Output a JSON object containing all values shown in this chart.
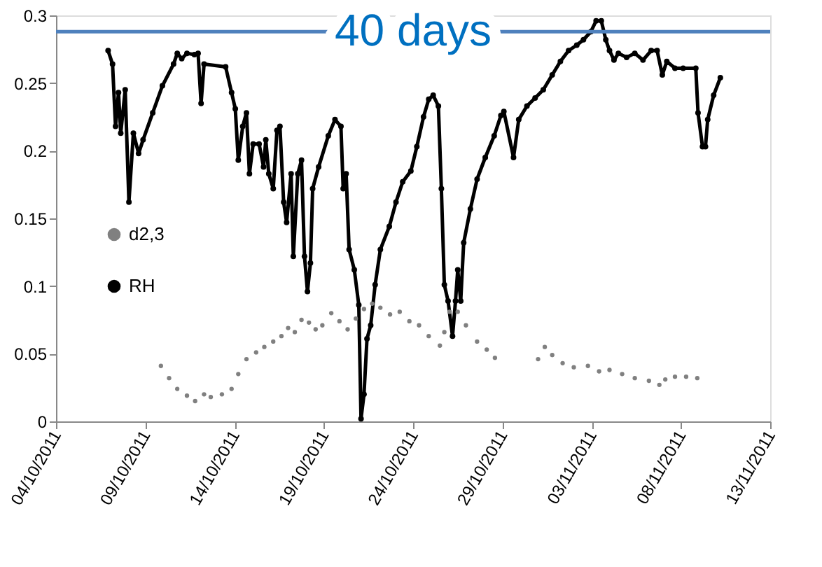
{
  "chart_data": {
    "type": "line",
    "xlim": [
      "2011-10-04",
      "2011-11-13"
    ],
    "xticks": [
      {
        "value": "2011-10-04",
        "label": "04/10/2011"
      },
      {
        "value": "2011-10-09",
        "label": "09/10/2011"
      },
      {
        "value": "2011-10-14",
        "label": "14/10/2011"
      },
      {
        "value": "2011-10-19",
        "label": "19/10/2011"
      },
      {
        "value": "2011-10-24",
        "label": "24/10/2011"
      },
      {
        "value": "2011-10-29",
        "label": "29/10/2011"
      },
      {
        "value": "2011-11-03",
        "label": "03/11/2011"
      },
      {
        "value": "2011-11-08",
        "label": "08/11/2011"
      },
      {
        "value": "2011-11-13",
        "label": "13/11/2011"
      }
    ],
    "ylim": [
      0,
      0.3
    ],
    "yticks": [
      0,
      0.05,
      0.1,
      0.15,
      0.2,
      0.25,
      0.3
    ],
    "grid": false,
    "legend": "left",
    "marker": "circle",
    "line_style": "solid",
    "ref_lines": [
      {
        "axis": "y",
        "value": 0.288,
        "label": "40 days",
        "color": "#4f81bd"
      }
    ],
    "series": [
      {
        "name": "d2,3",
        "type": "scatter",
        "color": "#808080",
        "x": [
          "2011-10-09T21:00",
          "2011-10-10T08:00",
          "2011-10-10T19:00",
          "2011-10-11T08:00",
          "2011-10-11T19:00",
          "2011-10-12T07:00",
          "2011-10-12T16:00",
          "2011-10-13T07:00",
          "2011-10-13T20:00",
          "2011-10-14T05:00",
          "2011-10-14T16:00",
          "2011-10-15T05:00",
          "2011-10-15T16:00",
          "2011-10-16T04:00",
          "2011-10-16T15:00",
          "2011-10-17T00:00",
          "2011-10-17T09:00",
          "2011-10-17T18:00",
          "2011-10-18T04:00",
          "2011-10-18T13:00",
          "2011-10-18T22:00",
          "2011-10-19T10:00",
          "2011-10-19T21:00",
          "2011-10-20T08:00",
          "2011-10-20T19:00",
          "2011-10-21T06:00",
          "2011-10-21T17:00",
          "2011-10-22T04:00",
          "2011-10-22T17:00",
          "2011-10-23T06:00",
          "2011-10-23T19:00",
          "2011-10-24T08:00",
          "2011-10-24T21:00",
          "2011-10-25T12:00",
          "2011-10-25T18:00",
          "2011-10-26T01:00",
          "2011-10-26T12:00",
          "2011-10-26T23:00",
          "2011-10-27T14:00",
          "2011-10-28T03:00",
          "2011-10-28T14:00",
          "2011-10-29T20:00",
          "2011-10-31T00:00",
          "2011-10-31T09:00",
          "2011-10-31T19:00",
          "2011-11-01T09:00",
          "2011-11-02T00:00",
          "2011-11-02T19:00",
          "2011-11-03T10:00",
          "2011-11-04T00:00",
          "2011-11-04T17:00",
          "2011-11-05T10:00",
          "2011-11-06T05:00",
          "2011-11-06T19:00",
          "2011-11-07T03:00",
          "2011-11-07T16:00",
          "2011-11-08T07:00",
          "2011-11-08T22:00"
        ],
        "values": [
          0.041,
          0.032,
          0.024,
          0.019,
          0.015,
          0.02,
          0.018,
          0.02,
          0.024,
          0.035,
          0.046,
          0.051,
          0.055,
          0.059,
          0.063,
          0.069,
          0.066,
          0.075,
          0.073,
          0.068,
          0.071,
          0.08,
          0.074,
          0.068,
          0.076,
          0.083,
          0.087,
          0.084,
          0.079,
          0.081,
          0.074,
          0.071,
          0.063,
          0.056,
          0.066,
          0.081,
          0.081,
          0.071,
          0.059,
          0.053,
          0.047,
          null,
          0.046,
          0.055,
          0.049,
          0.043,
          0.04,
          0.041,
          0.037,
          0.038,
          0.035,
          0.032,
          0.03,
          0.027,
          0.031,
          0.033,
          0.033,
          0.032
        ]
      },
      {
        "name": "RH",
        "color": "#000000",
        "x": [
          "2011-10-06T22:00",
          "2011-10-07T04:00",
          "2011-10-07T08:00",
          "2011-10-07T12:00",
          "2011-10-07T15:00",
          "2011-10-07T21:00",
          "2011-10-08T02:00",
          "2011-10-08T08:00",
          "2011-10-08T15:00",
          "2011-10-08T21:00",
          "2011-10-09T10:00",
          "2011-10-09T23:00",
          "2011-10-10T14:00",
          "2011-10-10T19:00",
          "2011-10-11T01:00",
          "2011-10-11T08:00",
          "2011-10-11T18:00",
          "2011-10-11T23:00",
          "2011-10-12T03:00",
          "2011-10-12T07:00",
          "2011-10-13T12:00",
          "2011-10-13T20:00",
          "2011-10-14T01:00",
          "2011-10-14T05:00",
          "2011-10-14T11:00",
          "2011-10-14T16:00",
          "2011-10-14T20:00",
          "2011-10-15T01:00",
          "2011-10-15T09:00",
          "2011-10-15T15:00",
          "2011-10-15T18:00",
          "2011-10-15T22:00",
          "2011-10-16T04:00",
          "2011-10-16T09:00",
          "2011-10-16T13:00",
          "2011-10-16T18:00",
          "2011-10-16T22:00",
          "2011-10-17T04:00",
          "2011-10-17T07:00",
          "2011-10-17T13:00",
          "2011-10-17T18:00",
          "2011-10-17T22:00",
          "2011-10-18T02:00",
          "2011-10-18T06:00",
          "2011-10-18T09:00",
          "2011-10-18T17:00",
          "2011-10-19T06:00",
          "2011-10-19T15:00",
          "2011-10-19T23:00",
          "2011-10-20T02:00",
          "2011-10-20T06:00",
          "2011-10-20T10:00",
          "2011-10-20T17:00",
          "2011-10-20T23:00",
          "2011-10-21T02:00",
          "2011-10-21T06:00",
          "2011-10-21T10:00",
          "2011-10-21T15:00",
          "2011-10-21T21:00",
          "2011-10-22T04:00",
          "2011-10-22T16:00",
          "2011-10-23T01:00",
          "2011-10-23T10:00",
          "2011-10-23T21:00",
          "2011-10-24T05:00",
          "2011-10-24T14:00",
          "2011-10-24T21:00",
          "2011-10-25T03:00",
          "2011-10-25T10:00",
          "2011-10-25T14:00",
          "2011-10-25T18:00",
          "2011-10-25T23:00",
          "2011-10-26T05:00",
          "2011-10-26T09:00",
          "2011-10-26T12:00",
          "2011-10-26T16:00",
          "2011-10-26T20:00",
          "2011-10-27T05:00",
          "2011-10-27T14:00",
          "2011-10-28T01:00",
          "2011-10-28T13:00",
          "2011-10-28T22:00",
          "2011-10-29T02:00",
          "2011-10-29T15:00",
          "2011-10-29T22:00",
          "2011-10-30T09:00",
          "2011-10-30T20:00",
          "2011-10-31T07:00",
          "2011-10-31T19:00",
          "2011-11-01T06:00",
          "2011-11-01T17:00",
          "2011-11-02T04:00",
          "2011-11-02T13:00",
          "2011-11-02T23:00",
          "2011-11-03T06:00",
          "2011-11-03T13:00",
          "2011-11-03T19:00",
          "2011-11-04T00:00",
          "2011-11-04T06:00",
          "2011-11-04T12:00",
          "2011-11-04T23:00",
          "2011-11-05T10:00",
          "2011-11-05T21:00",
          "2011-11-06T08:00",
          "2011-11-06T16:00",
          "2011-11-06T23:00",
          "2011-11-07T05:00",
          "2011-11-07T16:00",
          "2011-11-08T03:00",
          "2011-11-08T20:00",
          "2011-11-08T23:00",
          "2011-11-09T05:00",
          "2011-11-09T09:00",
          "2011-11-09T12:00",
          "2011-11-09T20:00",
          "2011-11-10T05:00"
        ],
        "values": [
          0.274,
          0.264,
          0.218,
          0.243,
          0.213,
          0.245,
          0.162,
          0.213,
          0.198,
          0.208,
          0.228,
          0.248,
          0.264,
          0.272,
          0.268,
          0.272,
          0.271,
          0.272,
          0.235,
          0.264,
          0.262,
          0.243,
          0.231,
          0.193,
          0.218,
          0.228,
          0.183,
          0.205,
          0.205,
          0.188,
          0.208,
          0.183,
          0.172,
          0.215,
          0.218,
          0.162,
          0.147,
          0.183,
          0.122,
          0.183,
          0.193,
          0.122,
          0.096,
          0.117,
          0.172,
          0.188,
          0.211,
          0.223,
          0.218,
          0.172,
          0.183,
          0.127,
          0.112,
          0.086,
          0.002,
          0.02,
          0.061,
          0.071,
          0.101,
          0.127,
          0.144,
          0.162,
          0.177,
          0.185,
          0.203,
          0.225,
          0.238,
          0.241,
          0.233,
          0.172,
          0.101,
          0.089,
          0.063,
          0.089,
          0.112,
          0.089,
          0.132,
          0.157,
          0.179,
          0.195,
          0.211,
          0.226,
          0.229,
          0.195,
          0.223,
          0.233,
          0.239,
          0.245,
          0.256,
          0.266,
          0.274,
          0.278,
          0.282,
          0.288,
          0.296,
          0.296,
          0.282,
          0.274,
          0.267,
          0.272,
          0.269,
          0.272,
          0.267,
          0.274,
          0.274,
          0.256,
          0.266,
          0.261,
          0.261,
          0.261,
          0.228,
          0.203,
          0.203,
          0.223,
          0.241,
          0.254
        ]
      }
    ]
  }
}
